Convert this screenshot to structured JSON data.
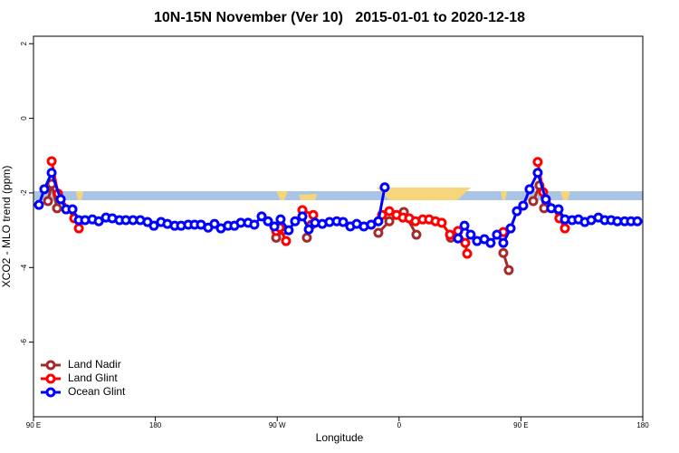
{
  "chart_data": {
    "type": "line",
    "title": "10N-15N November (Ver 10)   2015-01-01 to 2020-12-18",
    "x_label": "Longitude",
    "y_label": "XCO2 - MLO trend (ppm)",
    "xlim": [
      90,
      540
    ],
    "xticks": [
      {
        "value": 90,
        "label": "90 E"
      },
      {
        "value": 180,
        "label": "180"
      },
      {
        "value": 270,
        "label": "90 W"
      },
      {
        "value": 360,
        "label": "0"
      },
      {
        "value": 450,
        "label": "90 E"
      },
      {
        "value": 540,
        "label": "180"
      }
    ],
    "ylim": [
      -8,
      2.2
    ],
    "yticks": [
      2,
      0,
      -2,
      -4,
      -6
    ],
    "grid": false,
    "legend": "bottom-left",
    "series": [
      {
        "name": "Land Nadir",
        "color": "#a52a2a",
        "x": [
          100.7,
          103.4,
          107.4,
          200,
          269.2,
          274.5,
          280,
          291.9,
          295.3,
          320,
          344.7,
          352.8,
          363.5,
          372.8,
          380,
          398.2,
          403.6,
          420,
          437.0,
          441.0,
          450,
          459.1,
          463.7,
          467.1
        ],
        "values": [
          -2.22,
          -1.76,
          -2.41,
          null,
          -3.2,
          -3.0,
          null,
          -3.2,
          -2.85,
          null,
          -3.07,
          -2.76,
          -2.51,
          -3.12,
          null,
          -3.2,
          -3.02,
          null,
          -3.61,
          -4.07,
          null,
          -2.22,
          -1.8,
          -2.41
        ]
      },
      {
        "name": "Land Glint",
        "color": "#ff0000",
        "x": [
          103.4,
          108.1,
          120.1,
          123.5,
          200,
          269.2,
          271.9,
          276.5,
          280,
          288.6,
          296.6,
          320,
          347.4,
          352.8,
          358.1,
          362.8,
          367.5,
          372.1,
          377.5,
          382.2,
          386.9,
          391.5,
          397.6,
          403.6,
          408.9,
          410.3,
          420,
          437.0,
          450,
          462.4,
          466.4,
          478.4,
          482.5
        ],
        "values": [
          -1.15,
          -2.02,
          -2.68,
          -2.95,
          null,
          -3.02,
          -2.93,
          -3.29,
          null,
          -2.46,
          -2.59,
          null,
          -2.59,
          -2.49,
          -2.59,
          -2.66,
          -2.68,
          -2.76,
          -2.71,
          -2.71,
          -2.76,
          -2.8,
          -3.12,
          -3.02,
          -3.34,
          -3.63,
          null,
          -3.05,
          null,
          -1.17,
          -1.98,
          -2.68,
          -2.95
        ]
      },
      {
        "name": "Ocean Glint",
        "color": "#0000ff",
        "x": [
          94.0,
          98.0,
          103.4,
          110.1,
          114.1,
          118.8,
          123.5,
          128.1,
          133.5,
          138.2,
          143.5,
          148.2,
          153.5,
          158.2,
          163.5,
          168.9,
          174.2,
          178.9,
          184.2,
          188.9,
          194.3,
          199.0,
          204.3,
          209.0,
          213.7,
          219.0,
          223.7,
          228.4,
          233.7,
          238.4,
          243.1,
          248.5,
          253.1,
          258.5,
          263.2,
          267.9,
          272.5,
          278.5,
          283.2,
          288.6,
          293.3,
          297.9,
          303.3,
          308.6,
          314.0,
          318.7,
          324.0,
          328.7,
          334.0,
          339.4,
          344.7,
          349.4,
          376,
          403.6,
          408.3,
          412.9,
          417.6,
          423.0,
          427.6,
          432.3,
          437.0,
          442.4,
          447.0,
          451.7,
          456.4,
          462.4,
          468.4,
          472.4,
          477.8,
          482.5,
          487.8,
          492.5,
          497.2,
          501.9,
          507.2,
          511.9,
          516.6,
          521.2,
          526.6,
          531.3,
          536.0
        ],
        "values": [
          -2.32,
          -1.9,
          -1.46,
          -2.17,
          -2.44,
          -2.44,
          -2.73,
          -2.73,
          -2.71,
          -2.76,
          -2.66,
          -2.68,
          -2.73,
          -2.73,
          -2.73,
          -2.73,
          -2.78,
          -2.88,
          -2.78,
          -2.83,
          -2.88,
          -2.88,
          -2.85,
          -2.85,
          -2.85,
          -2.93,
          -2.83,
          -2.95,
          -2.88,
          -2.88,
          -2.8,
          -2.8,
          -2.85,
          -2.63,
          -2.76,
          -2.9,
          -2.71,
          -3.0,
          -2.76,
          -2.63,
          -2.98,
          -2.8,
          -2.83,
          -2.78,
          -2.76,
          -2.78,
          -2.9,
          -2.83,
          -2.9,
          -2.85,
          -2.76,
          -1.85,
          null,
          -3.22,
          -2.88,
          -3.12,
          -3.29,
          -3.24,
          -3.34,
          -3.12,
          -3.34,
          -2.95,
          -2.49,
          -2.34,
          -1.9,
          -1.46,
          -2.17,
          -2.41,
          -2.44,
          -2.71,
          -2.73,
          -2.71,
          -2.78,
          -2.73,
          -2.66,
          -2.73,
          -2.73,
          -2.76,
          -2.76,
          -2.76,
          -2.76
        ]
      }
    ]
  }
}
